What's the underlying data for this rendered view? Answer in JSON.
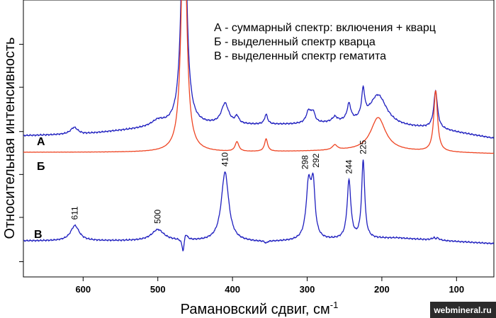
{
  "chart_data": {
    "type": "line",
    "title": "",
    "xlabel": "Рамановский сдвиг, см",
    "xlabel_superscript": "-1",
    "ylabel": "Относительная интенсивность",
    "xlim": [
      680,
      50
    ],
    "x_reversed": true,
    "ylim": [
      0,
      10
    ],
    "x_ticks": [
      600,
      500,
      400,
      300,
      200,
      100
    ],
    "y_ticks": [
      0.55,
      2.15,
      3.7,
      5.25,
      6.85,
      8.4
    ],
    "grid": false,
    "legend": {
      "placement": "top-right",
      "entries": [
        "А - суммарный спектр: включения + кварц",
        "Б - выделенный спектр кварца",
        "В - выделенный спектр гематита"
      ]
    },
    "series": [
      {
        "name": "А",
        "color": "#1f1fbf",
        "baseline": [
          [
            680,
            5.1
          ],
          [
            600,
            5.15
          ],
          [
            520,
            5.35
          ],
          [
            480,
            5.45
          ],
          [
            300,
            5.5
          ],
          [
            250,
            5.55
          ],
          [
            180,
            5.4
          ],
          [
            130,
            5.35
          ],
          [
            50,
            5.0
          ]
        ],
        "peaks": [
          [
            612,
            0.25,
            6
          ],
          [
            500,
            0.2,
            10
          ],
          [
            465,
            9.3,
            4
          ],
          [
            410,
            0.75,
            6
          ],
          [
            394,
            0.25,
            3
          ],
          [
            355,
            0.35,
            2.5
          ],
          [
            298,
            0.45,
            4
          ],
          [
            292,
            0.35,
            3
          ],
          [
            263,
            0.18,
            4
          ],
          [
            244,
            0.6,
            3
          ],
          [
            225,
            1.0,
            2.5
          ],
          [
            205,
            1.1,
            14
          ],
          [
            128,
            1.35,
            3
          ]
        ]
      },
      {
        "name": "Б",
        "color": "#ee4422",
        "baseline": [
          [
            680,
            4.5
          ],
          [
            400,
            4.5
          ],
          [
            250,
            4.55
          ],
          [
            200,
            4.55
          ],
          [
            50,
            4.45
          ]
        ],
        "peaks": [
          [
            465,
            9.5,
            4
          ],
          [
            394,
            0.35,
            3
          ],
          [
            355,
            0.45,
            2.5
          ],
          [
            263,
            0.18,
            4
          ],
          [
            205,
            1.2,
            12
          ],
          [
            128,
            2.2,
            3
          ]
        ]
      },
      {
        "name": "В",
        "color": "#1f1fbf",
        "baseline": [
          [
            680,
            1.3
          ],
          [
            600,
            1.3
          ],
          [
            470,
            1.3
          ],
          [
            360,
            1.25
          ],
          [
            300,
            1.3
          ],
          [
            180,
            1.4
          ],
          [
            50,
            1.2
          ]
        ],
        "peaks": [
          [
            611,
            0.55,
            7
          ],
          [
            500,
            0.4,
            10
          ],
          [
            463,
            0.3,
            3
          ],
          [
            410,
            2.5,
            6
          ],
          [
            298,
            2.0,
            4
          ],
          [
            292,
            1.8,
            3
          ],
          [
            244,
            2.1,
            3
          ],
          [
            225,
            2.8,
            2.5
          ],
          [
            128,
            0.35,
            3
          ]
        ],
        "dips": [
          [
            466,
            0.55,
            2
          ],
          [
            355,
            0.08,
            2
          ],
          [
            128,
            0.3,
            2
          ]
        ]
      }
    ],
    "series_labels": [
      "А",
      "Б",
      "В"
    ],
    "peak_labels": [
      {
        "x": 611,
        "text": "611"
      },
      {
        "x": 500,
        "text": "500"
      },
      {
        "x": 410,
        "text": "410"
      },
      {
        "x": 298,
        "text": "298"
      },
      {
        "x": 292,
        "text": "292"
      },
      {
        "x": 244,
        "text": "244"
      },
      {
        "x": 225,
        "text": "225"
      }
    ]
  },
  "watermark": "webmineral.ru"
}
